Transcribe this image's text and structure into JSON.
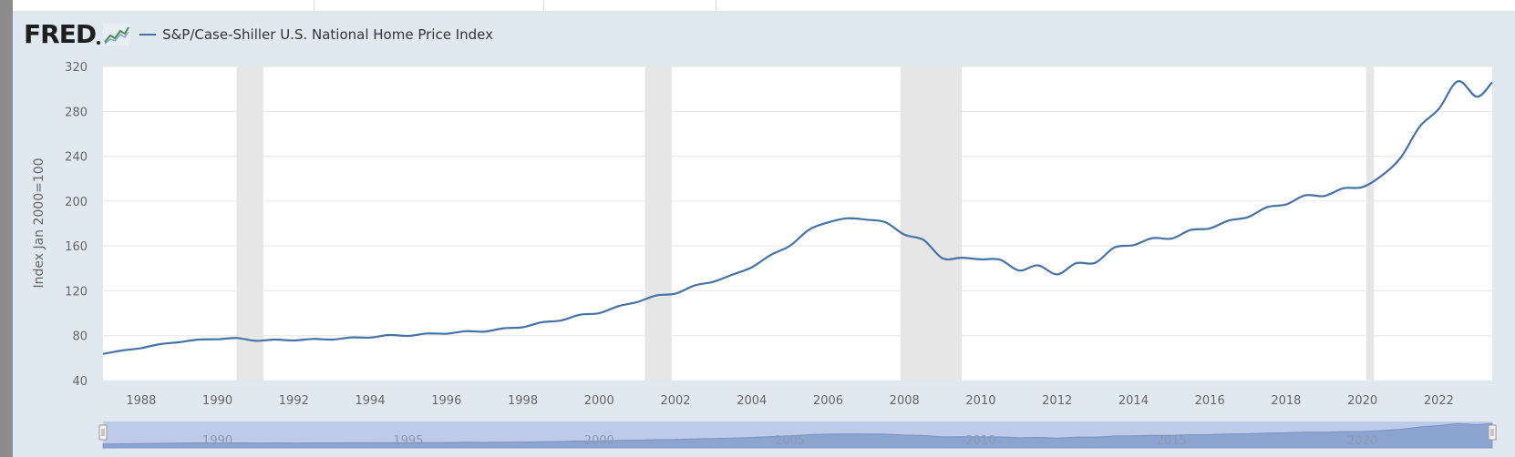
{
  "header": {
    "logo_text": "FRED",
    "logo_icon": "fred-graph-icon"
  },
  "colors": {
    "background": "#e1e9f0",
    "plot_background": "#ffffff",
    "series_line": "#4572a7",
    "recession_band": "#e6e6e6",
    "navigator_fill": "#b8c7e6"
  },
  "chart_data": {
    "type": "line",
    "title": "",
    "legend": [
      "S&P/Case-Shiller U.S. National Home Price Index"
    ],
    "legend_placement": "top-left",
    "xlabel": "",
    "ylabel": "Index Jan 2000=100",
    "xlim": [
      1987.0,
      2023.4
    ],
    "ylim": [
      40,
      320
    ],
    "yticks": [
      40,
      80,
      120,
      160,
      200,
      240,
      280,
      320
    ],
    "xticks": [
      1988,
      1990,
      1992,
      1994,
      1996,
      1998,
      2000,
      2002,
      2004,
      2006,
      2008,
      2010,
      2012,
      2014,
      2016,
      2018,
      2020,
      2022
    ],
    "grid": true,
    "recessions": [
      [
        1990.5,
        1991.2
      ],
      [
        2001.2,
        2001.9
      ],
      [
        2007.9,
        2009.5
      ],
      [
        2020.1,
        2020.3
      ]
    ],
    "series": [
      {
        "name": "S&P/Case-Shiller U.S. National Home Price Index",
        "x": [
          1987.0,
          1987.5,
          1988.0,
          1988.5,
          1989.0,
          1989.5,
          1990.0,
          1990.5,
          1991.0,
          1991.5,
          1992.0,
          1992.5,
          1993.0,
          1993.5,
          1994.0,
          1994.5,
          1995.0,
          1995.5,
          1996.0,
          1996.5,
          1997.0,
          1997.5,
          1998.0,
          1998.5,
          1999.0,
          1999.5,
          2000.0,
          2000.5,
          2001.0,
          2001.5,
          2002.0,
          2002.5,
          2003.0,
          2003.5,
          2004.0,
          2004.5,
          2005.0,
          2005.5,
          2006.0,
          2006.5,
          2007.0,
          2007.5,
          2008.0,
          2008.5,
          2009.0,
          2009.5,
          2010.0,
          2010.5,
          2011.0,
          2011.5,
          2012.0,
          2012.5,
          2013.0,
          2013.5,
          2014.0,
          2014.5,
          2015.0,
          2015.5,
          2016.0,
          2016.5,
          2017.0,
          2017.5,
          2018.0,
          2018.5,
          2019.0,
          2019.5,
          2020.0,
          2020.5,
          2021.0,
          2021.5,
          2022.0,
          2022.5,
          2023.0,
          2023.4
        ],
        "values": [
          63.8,
          66.8,
          68.9,
          72.5,
          74.2,
          76.5,
          76.8,
          77.9,
          75.4,
          76.5,
          75.7,
          77.1,
          76.5,
          78.4,
          78.3,
          80.6,
          79.8,
          82.0,
          81.7,
          84.0,
          83.6,
          86.6,
          87.5,
          92.0,
          93.5,
          98.7,
          100.0,
          106.3,
          110.0,
          115.9,
          117.4,
          124.7,
          128.1,
          134.5,
          141.0,
          152.1,
          160.1,
          174.5,
          181.0,
          184.6,
          183.4,
          181.1,
          170.0,
          165.3,
          149.0,
          149.5,
          148.0,
          147.8,
          138.1,
          142.7,
          134.6,
          144.6,
          144.9,
          158.6,
          160.7,
          166.9,
          166.5,
          174.2,
          175.6,
          182.7,
          185.6,
          194.5,
          197.0,
          205.1,
          204.5,
          211.4,
          212.4,
          222.6,
          238.6,
          266.4,
          282.1,
          306.8,
          293.0,
          306.0
        ]
      }
    ],
    "navigator": {
      "labels": [
        "1990",
        "1995",
        "2000",
        "2005",
        "2010",
        "2015",
        "2020"
      ]
    }
  }
}
